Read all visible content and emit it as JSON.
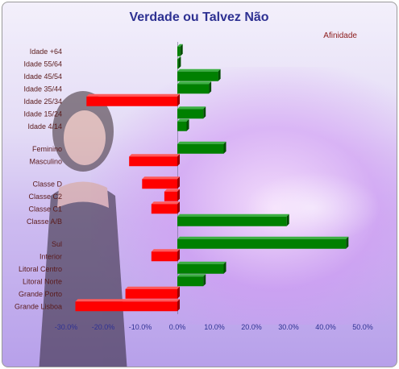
{
  "chart_data": {
    "type": "bar",
    "orientation": "horizontal",
    "title": "Verdade ou Talvez Não",
    "legend": "Afinidade",
    "legend_position": "top-right",
    "xlim": [
      -30,
      50
    ],
    "x_ticks": [
      -30,
      -20,
      -10,
      0,
      10,
      20,
      30,
      40,
      50
    ],
    "x_tick_labels": [
      "-30.0%",
      "-20.0%",
      "-10.0%",
      "0.0%",
      "10.0%",
      "20.0%",
      "30.0%",
      "40.0%",
      "50.0%"
    ],
    "positive_color": "#008000",
    "negative_color": "#ff0000",
    "groups": [
      {
        "items": [
          {
            "label": "Idade +64",
            "value": 0.8
          },
          {
            "label": "Idade 55/64",
            "value": 0.3
          },
          {
            "label": "Idade 45/54",
            "value": 11.0
          },
          {
            "label": "Idade 35/44",
            "value": 8.5
          },
          {
            "label": "Idade 25/34",
            "value": -24.5
          },
          {
            "label": "Idade 15/24",
            "value": 7.0
          },
          {
            "label": "Idade 4/14",
            "value": 2.5
          }
        ]
      },
      {
        "items": [
          {
            "label": "Feminino",
            "value": 12.5
          },
          {
            "label": "Masculino",
            "value": -13.0
          }
        ]
      },
      {
        "items": [
          {
            "label": "Classe D",
            "value": -9.5
          },
          {
            "label": "Classe C2",
            "value": -3.5
          },
          {
            "label": "Classe C1",
            "value": -7.0
          },
          {
            "label": "Classe A/B",
            "value": 29.5
          }
        ]
      },
      {
        "items": [
          {
            "label": "Sul",
            "value": 45.5
          },
          {
            "label": "Interior",
            "value": -7.0
          },
          {
            "label": "Litoral Centro",
            "value": 12.5
          },
          {
            "label": "Litoral Norte",
            "value": 7.0
          },
          {
            "label": "Grande Porto",
            "value": -14.0
          },
          {
            "label": "Grande Lisboa",
            "value": -27.5
          }
        ]
      }
    ]
  }
}
